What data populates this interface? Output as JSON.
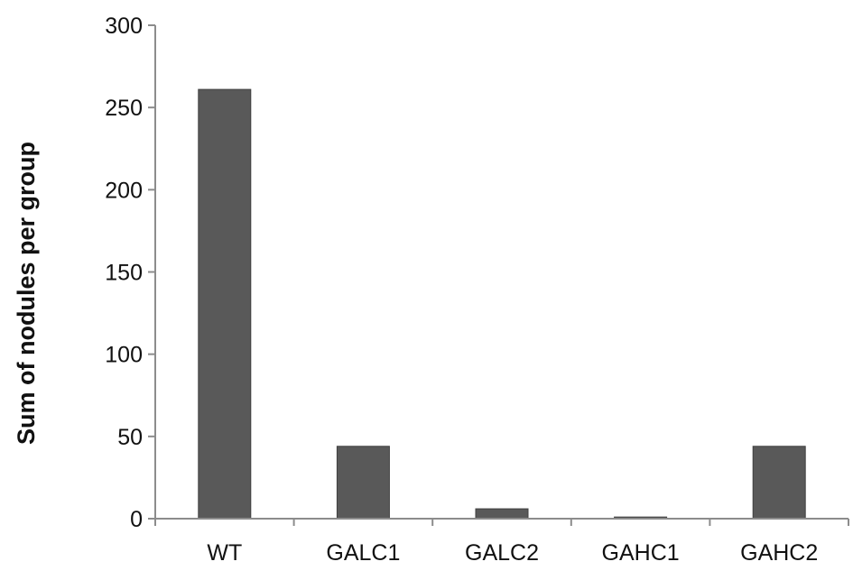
{
  "chart_data": {
    "type": "bar",
    "categories": [
      "WT",
      "GALC1",
      "GALC2",
      "GAHC1",
      "GAHC2"
    ],
    "values": [
      261,
      44,
      6,
      1,
      44
    ],
    "title": "",
    "xlabel": "",
    "ylabel": "Sum of nodules per group",
    "ylim": [
      0,
      300
    ],
    "yticks": [
      0,
      50,
      100,
      150,
      200,
      250,
      300
    ],
    "grid": false,
    "legend": "none",
    "bar_color": "#595959"
  }
}
